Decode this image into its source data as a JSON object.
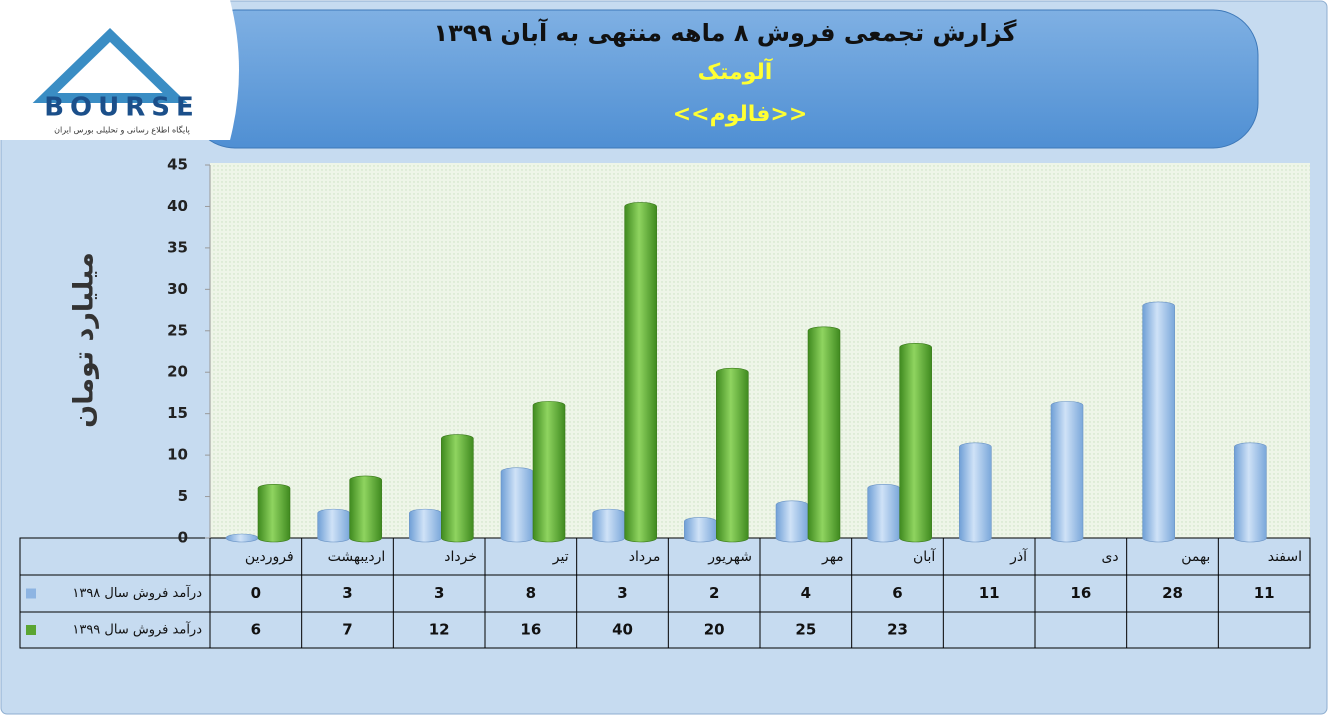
{
  "logo": {
    "brand": "BOURSE",
    "tagline": "پایگاه اطلاع رسانی و تحلیلی بورس ایران"
  },
  "chart_data": {
    "type": "bar",
    "title": "گزارش تجمعی فروش ۸ ماهه منتهی به آبان ۱۳۹۹",
    "subtitle": "آلومتک",
    "symbol": "<<فالوم>>",
    "y_label": "میلیارد تومان",
    "categories": [
      "فروردین",
      "اردیبهشت",
      "خرداد",
      "تیر",
      "مرداد",
      "شهریور",
      "مهر",
      "آبان",
      "آذر",
      "دی",
      "بهمن",
      "اسفند"
    ],
    "series": [
      {
        "name": "درآمد فروش سال ۱۳۹۸",
        "color": "#8db4e2",
        "values": [
          0,
          3,
          3,
          8,
          3,
          2,
          4,
          6,
          11,
          16,
          28,
          11
        ]
      },
      {
        "name": "درآمد فروش سال ۱۳۹۹",
        "color": "#5aa532",
        "values": [
          6,
          7,
          12,
          16,
          40,
          20,
          25,
          23,
          null,
          null,
          null,
          null
        ]
      }
    ],
    "ylim": [
      0,
      45
    ],
    "yticks": [
      0,
      5,
      10,
      15,
      20,
      25,
      30,
      35,
      40,
      45
    ],
    "grid": false,
    "legend": "table"
  }
}
